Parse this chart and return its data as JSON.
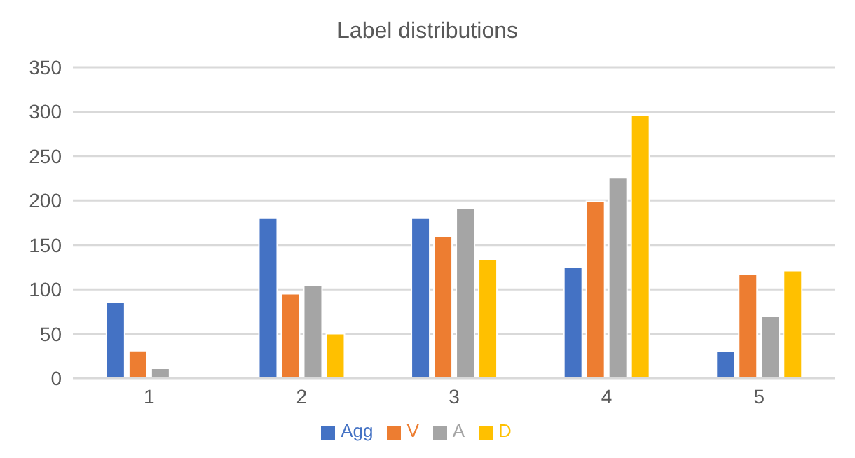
{
  "chart_data": {
    "type": "bar",
    "title": "Label distributions",
    "categories": [
      "1",
      "2",
      "3",
      "4",
      "5"
    ],
    "series": [
      {
        "name": "Agg",
        "color": "#4472c4",
        "values": [
          86,
          180,
          180,
          125,
          30
        ]
      },
      {
        "name": "V",
        "color": "#ed7d31",
        "values": [
          31,
          95,
          160,
          199,
          117
        ]
      },
      {
        "name": "A",
        "color": "#a5a5a5",
        "values": [
          11,
          104,
          191,
          226,
          70
        ]
      },
      {
        "name": "D",
        "color": "#ffc000",
        "values": [
          0,
          50,
          134,
          296,
          121
        ]
      }
    ],
    "ylim": [
      0,
      350
    ],
    "yticks": [
      0,
      50,
      100,
      150,
      200,
      250,
      300,
      350
    ],
    "grid": "y",
    "legend": "bottom"
  }
}
